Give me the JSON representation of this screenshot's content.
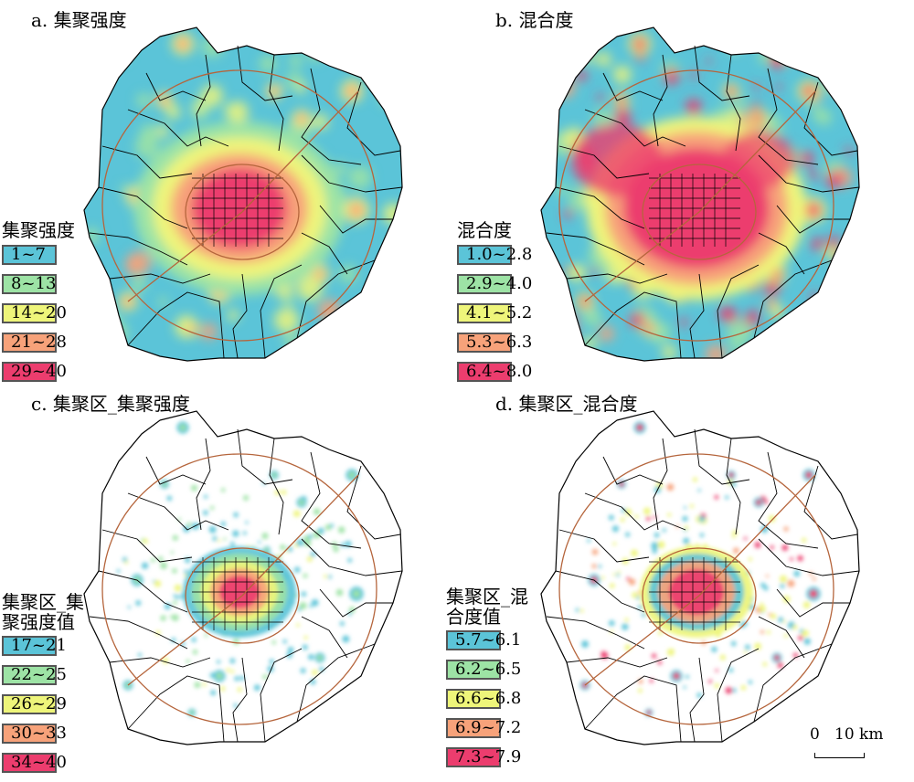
{
  "colors": {
    "class1": "#5bc4d8",
    "class2": "#9de3a5",
    "class3": "#eef57a",
    "class4": "#f7a27a",
    "class5": "#ec3d6e",
    "ring_road": "#b5653c",
    "boundary": "#000000",
    "background": "#ffffff"
  },
  "panels": [
    {
      "title": "a. 集聚强度",
      "legend_title": "集聚强度",
      "legend": [
        "1~7",
        "8~13",
        "14~20",
        "21~28",
        "29~40"
      ]
    },
    {
      "title": "b. 混合度",
      "legend_title": "混合度",
      "legend": [
        "1.0~2.8",
        "2.9~4.0",
        "4.1~5.2",
        "5.3~6.3",
        "6.4~8.0"
      ]
    },
    {
      "title": "c. 集聚区_集聚强度",
      "legend_title": "集聚区_集聚强度值",
      "legend": [
        "17~21",
        "22~25",
        "26~29",
        "30~33",
        "34~40"
      ]
    },
    {
      "title": "d. 集聚区_混合度",
      "legend_title": "集聚区_混合度值",
      "legend": [
        "5.7~6.1",
        "6.2~6.5",
        "6.6~6.8",
        "6.9~7.2",
        "7.3~7.9"
      ]
    }
  ],
  "scale_bar": {
    "zero": "0",
    "ten": "10 km"
  }
}
